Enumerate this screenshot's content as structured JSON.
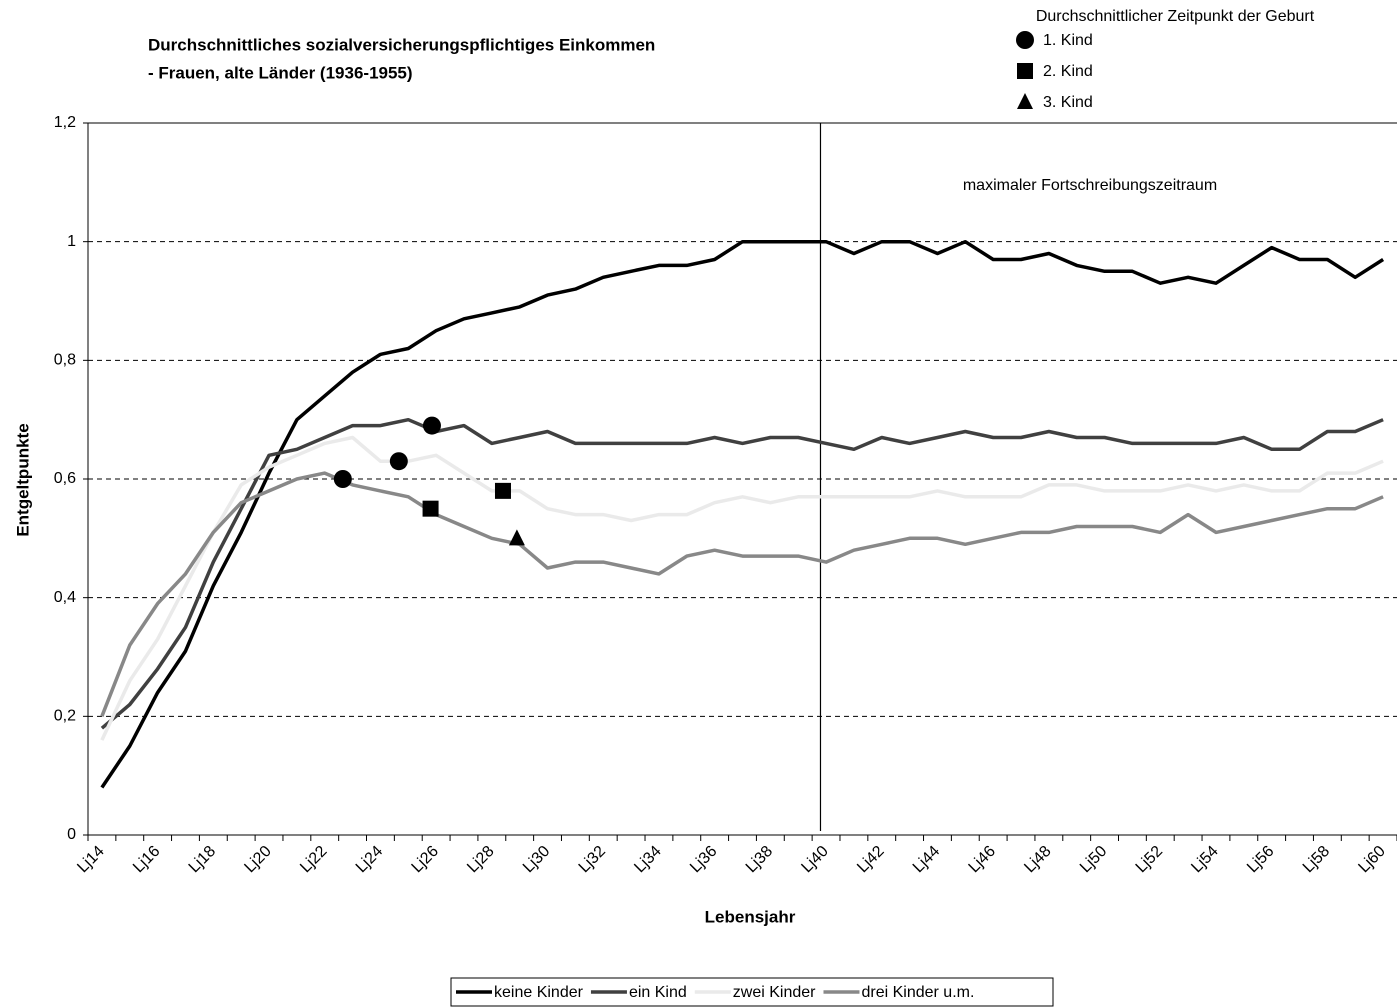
{
  "chart_data": {
    "type": "line",
    "title": "Durchschnittliches sozialversicherungspflichtiges Einkommen",
    "subtitle": "- Frauen, alte Länder (1936-1955)",
    "x_label": "Lebensjahr",
    "y_label": "Entgeltpunkte",
    "categories": [
      "Lj14",
      null,
      "Lj16",
      null,
      "Lj18",
      null,
      "Lj20",
      null,
      "Lj22",
      null,
      "Lj24",
      null,
      "Lj26",
      null,
      "Lj28",
      null,
      "Lj30",
      null,
      "Lj32",
      null,
      "Lj34",
      null,
      "Lj36",
      null,
      "Lj38",
      null,
      "Lj40",
      null,
      "Lj42",
      null,
      "Lj44",
      null,
      "Lj46",
      null,
      "Lj48",
      null,
      "Lj50",
      null,
      "Lj52",
      null,
      "Lj54",
      null,
      "Lj56",
      null,
      "Lj58",
      null,
      "Lj60"
    ],
    "xlim": [
      13.5,
      60.5
    ],
    "ylim": [
      0,
      1.2
    ],
    "yticks": [
      0,
      {
        "value": 0.2,
        "label": "0,2"
      },
      {
        "value": 0.4,
        "label": "0,4"
      },
      {
        "value": 0.6,
        "label": "0,6"
      },
      {
        "value": 0.8,
        "label": "0,8"
      },
      1,
      {
        "value": 1.2,
        "label": "1,2"
      }
    ],
    "grid": true,
    "series": [
      {
        "name": "keine Kinder",
        "color": "#000000",
        "values": [
          0.08,
          0.15,
          0.24,
          0.31,
          0.42,
          0.51,
          0.61,
          0.7,
          0.74,
          0.78,
          0.81,
          0.82,
          0.85,
          0.87,
          0.88,
          0.89,
          0.91,
          0.92,
          0.94,
          0.95,
          0.96,
          0.96,
          0.97,
          1.0,
          1.0,
          1.0,
          1.0,
          0.98,
          1.0,
          1.0,
          0.98,
          1.0,
          0.97,
          0.97,
          0.98,
          0.96,
          0.95,
          0.95,
          0.93,
          0.94,
          0.93,
          0.96,
          0.99,
          0.97,
          0.97,
          0.94,
          0.97
        ]
      },
      {
        "name": "ein Kind",
        "color": "#404040",
        "values": [
          0.18,
          0.22,
          0.28,
          0.35,
          0.46,
          0.55,
          0.64,
          0.65,
          0.67,
          0.69,
          0.69,
          0.7,
          0.68,
          0.69,
          0.66,
          0.67,
          0.68,
          0.66,
          0.66,
          0.66,
          0.66,
          0.66,
          0.67,
          0.66,
          0.67,
          0.67,
          0.66,
          0.65,
          0.67,
          0.66,
          0.67,
          0.68,
          0.67,
          0.67,
          0.68,
          0.67,
          0.67,
          0.66,
          0.66,
          0.66,
          0.66,
          0.67,
          0.65,
          0.65,
          0.68,
          0.68,
          0.7
        ]
      },
      {
        "name": "zwei Kinder",
        "color": "#eaeaea",
        "values": [
          0.16,
          0.26,
          0.33,
          0.42,
          0.51,
          0.59,
          0.62,
          0.64,
          0.66,
          0.67,
          0.63,
          0.63,
          0.64,
          0.61,
          0.58,
          0.58,
          0.55,
          0.54,
          0.54,
          0.53,
          0.54,
          0.54,
          0.56,
          0.57,
          0.56,
          0.57,
          0.57,
          0.57,
          0.57,
          0.57,
          0.58,
          0.57,
          0.57,
          0.57,
          0.59,
          0.59,
          0.58,
          0.58,
          0.58,
          0.59,
          0.58,
          0.59,
          0.58,
          0.58,
          0.61,
          0.61,
          0.63
        ]
      },
      {
        "name": "drei Kinder u.m.",
        "color": "#888888",
        "values": [
          0.2,
          0.32,
          0.39,
          0.44,
          0.51,
          0.56,
          0.58,
          0.6,
          0.61,
          0.59,
          0.58,
          0.57,
          0.54,
          0.52,
          0.5,
          0.49,
          0.45,
          0.46,
          0.46,
          0.45,
          0.44,
          0.47,
          0.48,
          0.47,
          0.47,
          0.47,
          0.46,
          0.48,
          0.49,
          0.5,
          0.5,
          0.49,
          0.5,
          0.51,
          0.51,
          0.52,
          0.52,
          0.52,
          0.51,
          0.54,
          0.51,
          0.52,
          0.53,
          0.54,
          0.55,
          0.55,
          0.57
        ]
      }
    ],
    "markers_title": "Durchschnittlicher Zeitpunkt der Geburt",
    "markers": [
      {
        "name": "1. Kind",
        "shape": "circle",
        "color": "#000000",
        "x": [
          22.65,
          24.66,
          25.85
        ],
        "values": [
          0.6,
          0.63,
          0.69
        ]
      },
      {
        "name": "2. Kind",
        "shape": "square",
        "color": "#000000",
        "x": [
          25.8,
          28.4
        ],
        "values": [
          0.55,
          0.58
        ]
      },
      {
        "name": "3. Kind",
        "shape": "triangle",
        "color": "#000000",
        "x": [
          28.9
        ],
        "values": [
          0.5
        ]
      }
    ],
    "vline": {
      "x": 39.8,
      "label": "maximaler Fortschreibungszeitraum"
    }
  }
}
